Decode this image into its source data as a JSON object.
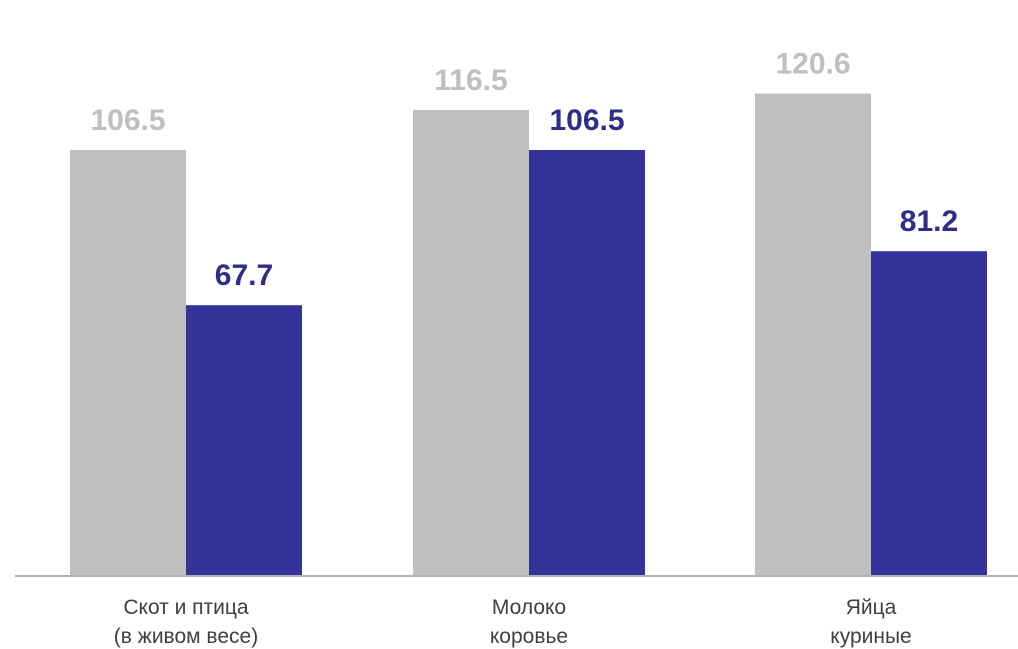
{
  "chart_data": {
    "type": "bar",
    "categories": [
      [
        "Скот и птица",
        "(в живом весе)"
      ],
      [
        "Молоко",
        "коровье"
      ],
      [
        "Яйца",
        "куриные"
      ]
    ],
    "series": [
      {
        "values": [
          106.5,
          116.5,
          120.6
        ],
        "color": "#bfbfbf",
        "label_color": "#bfbfbf"
      },
      {
        "values": [
          67.7,
          106.5,
          81.2
        ],
        "color": "#333399",
        "label_color": "#2e2e8a"
      }
    ],
    "ylim": [
      0,
      134
    ],
    "axis_color": "#b3b3b3",
    "grid": false,
    "legend": "none"
  }
}
